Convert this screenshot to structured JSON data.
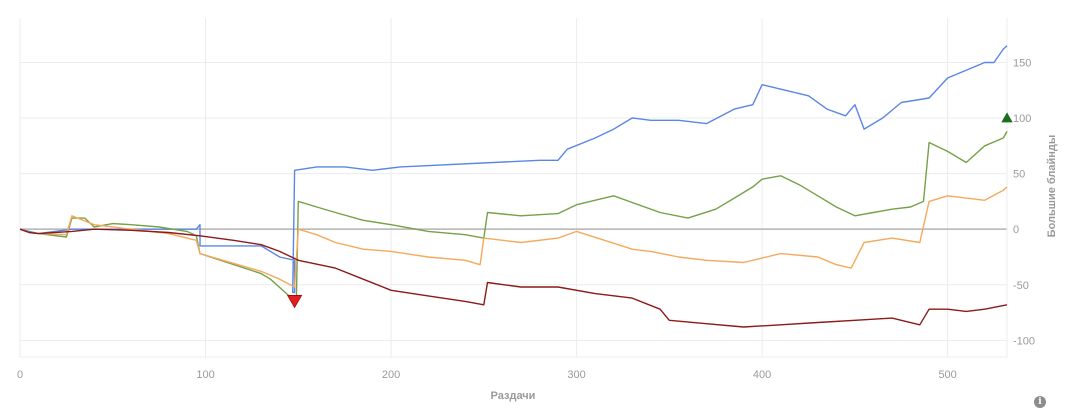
{
  "chart_data": {
    "type": "line",
    "xlabel": "Раздачи",
    "ylabel": "Большие блайнды",
    "xlim": [
      0,
      532
    ],
    "ylim": [
      -115,
      190
    ],
    "x_ticks": [
      0,
      100,
      200,
      300,
      400,
      500
    ],
    "y_ticks": [
      150,
      100,
      50,
      0,
      -50,
      -100
    ],
    "x_tick_labels": [
      "0",
      "100",
      "200",
      "300",
      "400",
      "500"
    ],
    "y_tick_labels": [
      "150",
      "100",
      "50",
      "0",
      "-50",
      "-100"
    ],
    "grid": true,
    "legend": "none",
    "colors": {
      "blue": "#5b86e5",
      "green": "#76a148",
      "orange": "#f5a95a",
      "red": "#8b1a1a",
      "zero_line": "#b3b3b3",
      "grid": "#ececec",
      "up_marker": "#1f6e1f",
      "down_marker": "#e02020"
    },
    "series": [
      {
        "color_key": "blue",
        "points": [
          [
            0,
            0
          ],
          [
            5,
            -2
          ],
          [
            10,
            -4
          ],
          [
            28,
            0
          ],
          [
            95,
            0
          ],
          [
            97,
            4
          ],
          [
            97,
            -15
          ],
          [
            130,
            -15
          ],
          [
            140,
            -25
          ],
          [
            148,
            -28
          ],
          [
            148,
            -57
          ],
          [
            147,
            -57
          ],
          [
            148,
            53
          ],
          [
            160,
            56
          ],
          [
            175,
            56
          ],
          [
            190,
            53
          ],
          [
            205,
            56
          ],
          [
            280,
            62
          ],
          [
            290,
            62
          ],
          [
            295,
            72
          ],
          [
            310,
            82
          ],
          [
            320,
            90
          ],
          [
            330,
            100
          ],
          [
            340,
            98
          ],
          [
            355,
            98
          ],
          [
            370,
            95
          ],
          [
            385,
            108
          ],
          [
            395,
            112
          ],
          [
            400,
            130
          ],
          [
            425,
            120
          ],
          [
            435,
            108
          ],
          [
            445,
            102
          ],
          [
            450,
            112
          ],
          [
            455,
            90
          ],
          [
            465,
            100
          ],
          [
            475,
            114
          ],
          [
            490,
            118
          ],
          [
            500,
            136
          ],
          [
            520,
            150
          ],
          [
            525,
            150
          ],
          [
            530,
            162
          ],
          [
            532,
            165
          ]
        ]
      },
      {
        "color_key": "green",
        "points": [
          [
            0,
            0
          ],
          [
            5,
            -3
          ],
          [
            10,
            -4
          ],
          [
            25,
            -7
          ],
          [
            28,
            10
          ],
          [
            35,
            10
          ],
          [
            40,
            2
          ],
          [
            50,
            5
          ],
          [
            60,
            4
          ],
          [
            75,
            2
          ],
          [
            90,
            -2
          ],
          [
            95,
            -6
          ],
          [
            97,
            -22
          ],
          [
            130,
            -40
          ],
          [
            135,
            -45
          ],
          [
            145,
            -60
          ],
          [
            149,
            -62
          ],
          [
            150,
            25
          ],
          [
            160,
            20
          ],
          [
            170,
            15
          ],
          [
            185,
            8
          ],
          [
            200,
            4
          ],
          [
            220,
            -2
          ],
          [
            240,
            -5
          ],
          [
            250,
            -8
          ],
          [
            252,
            15
          ],
          [
            270,
            12
          ],
          [
            290,
            14
          ],
          [
            300,
            22
          ],
          [
            320,
            30
          ],
          [
            330,
            24
          ],
          [
            345,
            15
          ],
          [
            360,
            10
          ],
          [
            375,
            18
          ],
          [
            385,
            28
          ],
          [
            395,
            38
          ],
          [
            400,
            45
          ],
          [
            410,
            48
          ],
          [
            420,
            40
          ],
          [
            430,
            30
          ],
          [
            440,
            20
          ],
          [
            450,
            12
          ],
          [
            460,
            15
          ],
          [
            470,
            18
          ],
          [
            480,
            20
          ],
          [
            487,
            25
          ],
          [
            490,
            78
          ],
          [
            500,
            70
          ],
          [
            510,
            60
          ],
          [
            520,
            75
          ],
          [
            530,
            82
          ],
          [
            532,
            88
          ]
        ]
      },
      {
        "color_key": "orange",
        "points": [
          [
            0,
            0
          ],
          [
            5,
            -3
          ],
          [
            10,
            -4
          ],
          [
            25,
            -5
          ],
          [
            28,
            12
          ],
          [
            40,
            4
          ],
          [
            60,
            0
          ],
          [
            80,
            -4
          ],
          [
            95,
            -10
          ],
          [
            97,
            -22
          ],
          [
            130,
            -38
          ],
          [
            140,
            -45
          ],
          [
            148,
            -52
          ],
          [
            150,
            0
          ],
          [
            160,
            -5
          ],
          [
            170,
            -12
          ],
          [
            185,
            -18
          ],
          [
            200,
            -20
          ],
          [
            220,
            -25
          ],
          [
            240,
            -28
          ],
          [
            248,
            -32
          ],
          [
            250,
            -8
          ],
          [
            270,
            -12
          ],
          [
            290,
            -8
          ],
          [
            300,
            -2
          ],
          [
            315,
            -10
          ],
          [
            330,
            -18
          ],
          [
            340,
            -20
          ],
          [
            355,
            -25
          ],
          [
            370,
            -28
          ],
          [
            390,
            -30
          ],
          [
            410,
            -22
          ],
          [
            430,
            -25
          ],
          [
            440,
            -32
          ],
          [
            448,
            -35
          ],
          [
            455,
            -12
          ],
          [
            470,
            -8
          ],
          [
            485,
            -12
          ],
          [
            490,
            25
          ],
          [
            500,
            30
          ],
          [
            510,
            28
          ],
          [
            520,
            26
          ],
          [
            530,
            35
          ],
          [
            532,
            38
          ]
        ]
      },
      {
        "color_key": "red",
        "points": [
          [
            0,
            0
          ],
          [
            5,
            -3
          ],
          [
            10,
            -4
          ],
          [
            28,
            -2
          ],
          [
            40,
            0
          ],
          [
            60,
            -1
          ],
          [
            80,
            -3
          ],
          [
            97,
            -6
          ],
          [
            115,
            -10
          ],
          [
            130,
            -14
          ],
          [
            140,
            -20
          ],
          [
            150,
            -28
          ],
          [
            170,
            -35
          ],
          [
            185,
            -45
          ],
          [
            200,
            -55
          ],
          [
            220,
            -60
          ],
          [
            240,
            -65
          ],
          [
            250,
            -68
          ],
          [
            252,
            -48
          ],
          [
            270,
            -52
          ],
          [
            290,
            -52
          ],
          [
            310,
            -58
          ],
          [
            330,
            -62
          ],
          [
            345,
            -72
          ],
          [
            350,
            -82
          ],
          [
            370,
            -85
          ],
          [
            390,
            -88
          ],
          [
            410,
            -86
          ],
          [
            430,
            -84
          ],
          [
            450,
            -82
          ],
          [
            470,
            -80
          ],
          [
            485,
            -86
          ],
          [
            490,
            -72
          ],
          [
            500,
            -72
          ],
          [
            510,
            -74
          ],
          [
            520,
            -72
          ],
          [
            532,
            -68
          ]
        ]
      }
    ],
    "markers": [
      {
        "shape": "triangle-up",
        "color_key": "up_marker",
        "x": 532,
        "y": 100
      },
      {
        "shape": "triangle-down",
        "color_key": "down_marker",
        "x": 148,
        "y": -65
      }
    ],
    "info_icon": "info-icon"
  }
}
